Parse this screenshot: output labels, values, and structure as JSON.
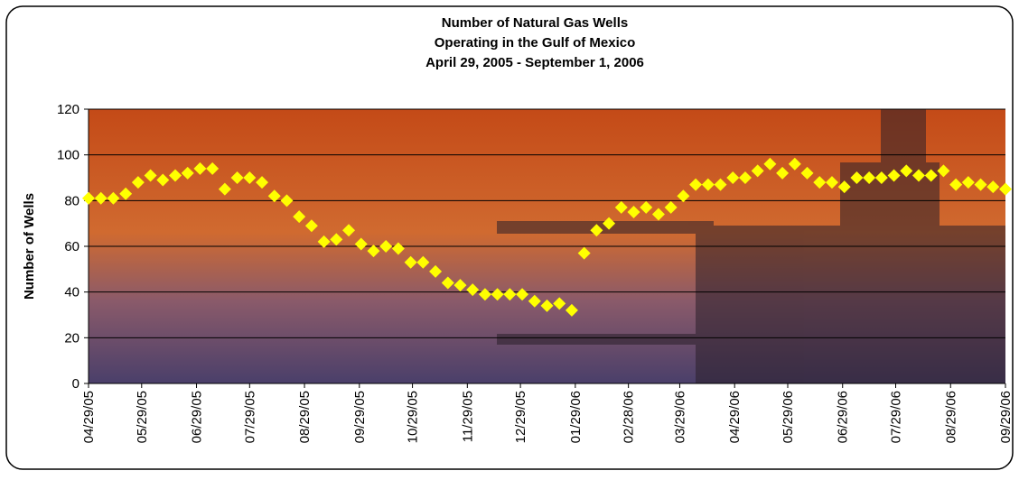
{
  "chart_data": {
    "type": "scatter",
    "title": [
      "Number of Natural Gas Wells",
      "Operating in the Gulf of Mexico",
      "April 29, 2005 - September 1, 2006"
    ],
    "y_label": "Number of Wells",
    "x": [
      "04/29/05",
      "05/06/05",
      "05/13/05",
      "05/20/05",
      "05/27/05",
      "06/03/05",
      "06/10/05",
      "06/17/05",
      "06/24/05",
      "07/01/05",
      "07/08/05",
      "07/15/05",
      "07/22/05",
      "07/29/05",
      "08/05/05",
      "08/12/05",
      "08/19/05",
      "08/26/05",
      "09/02/05",
      "09/09/05",
      "09/16/05",
      "09/23/05",
      "09/30/05",
      "10/07/05",
      "10/14/05",
      "10/21/05",
      "10/28/05",
      "11/04/05",
      "11/11/05",
      "11/18/05",
      "11/25/05",
      "12/02/05",
      "12/09/05",
      "12/16/05",
      "12/23/05",
      "12/30/05",
      "01/06/06",
      "01/13/06",
      "01/20/06",
      "01/27/06",
      "02/03/06",
      "02/10/06",
      "02/17/06",
      "02/24/06",
      "03/03/06",
      "03/10/06",
      "03/17/06",
      "03/24/06",
      "03/31/06",
      "04/07/06",
      "04/14/06",
      "04/21/06",
      "04/28/06",
      "05/05/06",
      "05/12/06",
      "05/19/06",
      "05/26/06",
      "06/02/06",
      "06/09/06",
      "06/16/06",
      "06/23/06",
      "06/30/06",
      "07/07/06",
      "07/14/06",
      "07/21/06",
      "07/28/06",
      "08/04/06",
      "08/11/06",
      "08/18/06",
      "08/25/06",
      "09/01/06",
      "09/08/06",
      "09/15/06",
      "09/22/06",
      "09/29/06"
    ],
    "series": [
      {
        "name": "Number of Wells",
        "color": "#ffff00",
        "values": [
          81,
          81,
          81,
          83,
          88,
          91,
          89,
          91,
          92,
          94,
          94,
          85,
          90,
          90,
          88,
          82,
          80,
          73,
          69,
          62,
          63,
          67,
          61,
          58,
          60,
          59,
          53,
          53,
          49,
          44,
          43,
          41,
          39,
          39,
          39,
          39,
          36,
          34,
          35,
          32,
          57,
          67,
          70,
          77,
          75,
          77,
          74,
          77,
          82,
          87,
          87,
          87,
          90,
          90,
          93,
          96,
          92,
          96,
          92,
          88,
          88,
          86,
          90,
          90,
          90,
          91,
          93,
          91,
          91,
          93,
          87,
          88,
          87,
          86,
          85
        ]
      }
    ],
    "xlim": [
      "04/29/05",
      "09/29/06"
    ],
    "xticks": [
      "04/29/05",
      "05/29/05",
      "06/29/05",
      "07/29/05",
      "08/29/05",
      "09/29/05",
      "10/29/05",
      "11/29/05",
      "12/29/05",
      "01/29/06",
      "02/28/06",
      "03/29/06",
      "04/29/06",
      "05/29/06",
      "06/29/06",
      "07/29/06",
      "08/29/06",
      "09/29/06"
    ],
    "ylim": [
      0,
      120
    ],
    "yticks": [
      0,
      20,
      40,
      60,
      80,
      100,
      120
    ],
    "grid": true
  }
}
